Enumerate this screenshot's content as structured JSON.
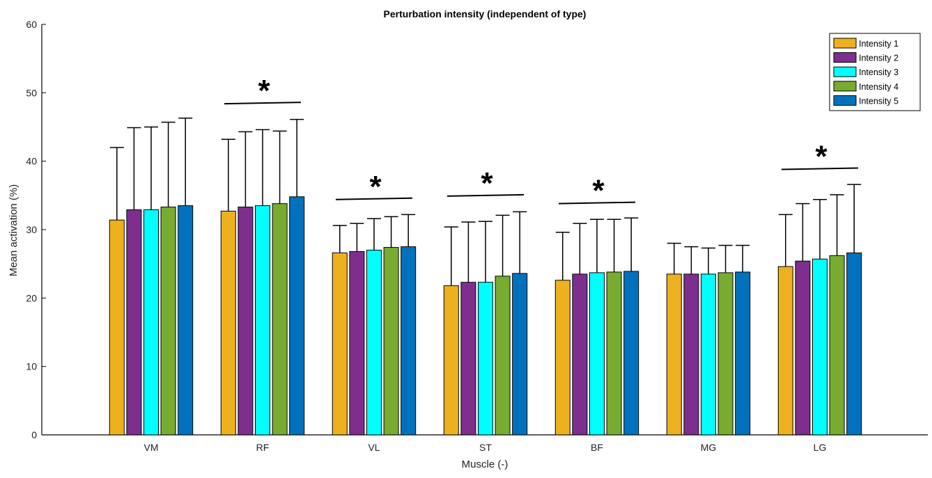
{
  "chart_data": {
    "type": "bar",
    "title": "Perturbation intensity (independent of type)",
    "xlabel": "Muscle (-)",
    "ylabel": "Mean activation (%)",
    "ylim": [
      0,
      60
    ],
    "yticks": [
      0,
      10,
      20,
      30,
      40,
      50,
      60
    ],
    "categories": [
      "VM",
      "RF",
      "VL",
      "ST",
      "BF",
      "MG",
      "LG"
    ],
    "legend_position": "top-right",
    "grid": false,
    "series": [
      {
        "name": "Intensity 1",
        "color": "#EDB120",
        "values": [
          31.4,
          32.7,
          26.6,
          21.8,
          22.6,
          23.5,
          24.6
        ],
        "error_upper": [
          42.0,
          43.2,
          30.6,
          30.4,
          29.6,
          28.0,
          32.2
        ]
      },
      {
        "name": "Intensity 2",
        "color": "#7E2F8E",
        "values": [
          32.9,
          33.3,
          26.8,
          22.3,
          23.5,
          23.5,
          25.4
        ],
        "error_upper": [
          44.9,
          44.3,
          30.9,
          31.1,
          30.9,
          27.5,
          33.8
        ]
      },
      {
        "name": "Intensity 3",
        "color": "#00FFFF",
        "values": [
          32.9,
          33.5,
          27.0,
          22.3,
          23.7,
          23.5,
          25.7
        ],
        "error_upper": [
          45.0,
          44.6,
          31.6,
          31.2,
          31.5,
          27.3,
          34.4
        ]
      },
      {
        "name": "Intensity 4",
        "color": "#77AC30",
        "values": [
          33.3,
          33.8,
          27.4,
          23.2,
          23.8,
          23.7,
          26.2
        ],
        "error_upper": [
          45.7,
          44.4,
          31.9,
          32.1,
          31.5,
          27.7,
          35.1
        ]
      },
      {
        "name": "Intensity 5",
        "color": "#0072BD",
        "values": [
          33.5,
          34.8,
          27.5,
          23.6,
          23.9,
          23.8,
          26.6
        ],
        "error_upper": [
          46.3,
          46.1,
          32.2,
          32.6,
          31.7,
          27.7,
          36.6
        ]
      }
    ],
    "significance": [
      {
        "category": "RF",
        "line_y": 48.5,
        "symbol": "*"
      },
      {
        "category": "VL",
        "line_y": 34.5,
        "symbol": "*"
      },
      {
        "category": "ST",
        "line_y": 35.0,
        "symbol": "*"
      },
      {
        "category": "BF",
        "line_y": 33.9,
        "symbol": "*"
      },
      {
        "category": "LG",
        "line_y": 38.9,
        "symbol": "*"
      }
    ]
  }
}
